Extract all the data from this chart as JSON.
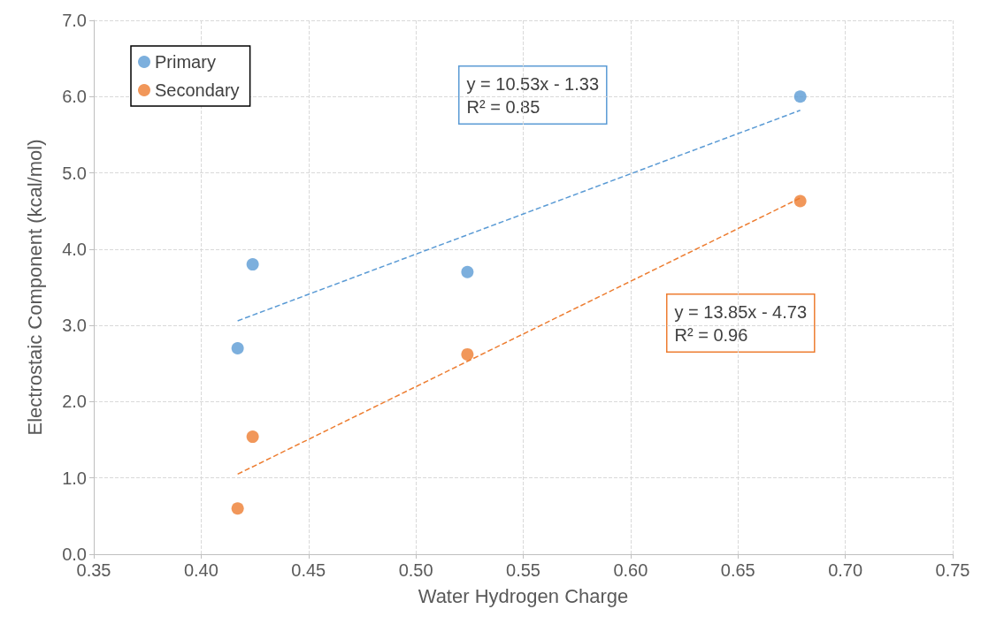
{
  "chart_data": {
    "type": "scatter",
    "xlabel": "Water Hydrogen Charge",
    "ylabel": "Electrostaic Component (kcal/mol)",
    "xlim": [
      0.35,
      0.75
    ],
    "xticks": [
      {
        "value": 0.35,
        "label": "0.35"
      },
      {
        "value": 0.4,
        "label": "0.40"
      },
      {
        "value": 0.45,
        "label": "0.45"
      },
      {
        "value": 0.5,
        "label": "0.50"
      },
      {
        "value": 0.55,
        "label": "0.55"
      },
      {
        "value": 0.6,
        "label": "0.60"
      },
      {
        "value": 0.65,
        "label": "0.65"
      },
      {
        "value": 0.7,
        "label": "0.70"
      },
      {
        "value": 0.75,
        "label": "0.75"
      }
    ],
    "ylim": [
      0,
      7
    ],
    "yticks": [
      {
        "value": 0,
        "label": "0.0"
      },
      {
        "value": 1,
        "label": "1.0"
      },
      {
        "value": 2,
        "label": "2.0"
      },
      {
        "value": 3,
        "label": "3.0"
      },
      {
        "value": 4,
        "label": "4.0"
      },
      {
        "value": 5,
        "label": "5.0"
      },
      {
        "value": 6,
        "label": "6.0"
      },
      {
        "value": 7,
        "label": "7.0"
      }
    ],
    "grid": true,
    "legend": "top left",
    "series": [
      {
        "name": "Primary",
        "color": "#5b9bd5",
        "marker": "circle",
        "x": [
          0.417,
          0.424,
          0.524,
          0.679
        ],
        "values": [
          2.7,
          3.8,
          3.7,
          6.0
        ]
      },
      {
        "name": "Secondary",
        "color": "#ed7d31",
        "marker": "circle",
        "x": [
          0.417,
          0.424,
          0.524,
          0.679
        ],
        "values": [
          0.6,
          1.54,
          2.62,
          4.63
        ]
      },
      {
        "type": "line",
        "color": "#5b9bd5",
        "marker": "none",
        "line_style": "dashed",
        "x": [
          0.417,
          0.679
        ],
        "values": [
          3.06,
          5.82
        ]
      },
      {
        "type": "line",
        "color": "#ed7d31",
        "marker": "none",
        "line_style": "dashed",
        "x": [
          0.417,
          0.679
        ],
        "values": [
          1.05,
          4.67
        ]
      }
    ],
    "annotations": [
      "y = 10.53x - 1.33\nR² = 0.85",
      "y = 13.85x - 4.73\nR² = 0.96"
    ]
  }
}
